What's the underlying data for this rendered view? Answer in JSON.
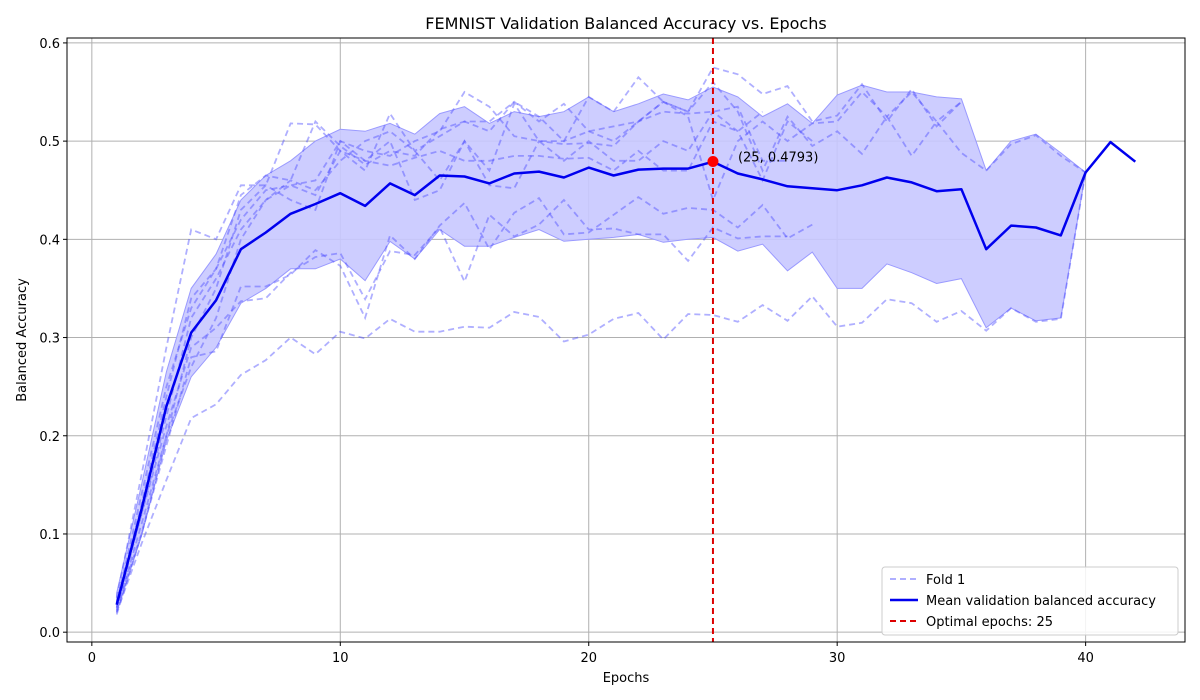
{
  "chart_data": {
    "type": "line",
    "title": "FEMNIST Validation Balanced Accuracy vs. Epochs",
    "xlabel": "Epochs",
    "ylabel": "Balanced Accuracy",
    "xlim": [
      -1,
      44
    ],
    "ylim": [
      -0.01,
      0.605
    ],
    "xticks": [
      0,
      10,
      20,
      30,
      40
    ],
    "yticks": [
      0.0,
      0.1,
      0.2,
      0.3,
      0.4,
      0.5,
      0.6
    ],
    "grid": true,
    "legend_position": "bottom-right",
    "colors": {
      "fold": "#4d4dff",
      "mean": "#0000ee",
      "band": "#c8c8ff",
      "optimal": "#dd0000"
    },
    "mean": {
      "name": "Mean validation balanced accuracy",
      "x": [
        1,
        2,
        3,
        4,
        5,
        6,
        7,
        8,
        9,
        10,
        11,
        12,
        13,
        14,
        15,
        16,
        17,
        18,
        19,
        20,
        21,
        22,
        23,
        24,
        25,
        26,
        27,
        28,
        29,
        30,
        31,
        32,
        33,
        34,
        35,
        36,
        37,
        38,
        39,
        40,
        41,
        42
      ],
      "values": [
        0.028,
        0.125,
        0.23,
        0.305,
        0.338,
        0.39,
        0.407,
        0.426,
        0.436,
        0.447,
        0.434,
        0.457,
        0.445,
        0.465,
        0.464,
        0.457,
        0.467,
        0.469,
        0.463,
        0.473,
        0.465,
        0.471,
        0.472,
        0.472,
        0.479,
        0.467,
        0.461,
        0.454,
        0.452,
        0.45,
        0.455,
        0.463,
        0.458,
        0.449,
        0.451,
        0.39,
        0.414,
        0.412,
        0.404,
        0.468,
        0.499,
        0.479
      ]
    },
    "band": {
      "x": [
        1,
        2,
        3,
        4,
        5,
        6,
        7,
        8,
        9,
        10,
        11,
        12,
        13,
        14,
        15,
        16,
        17,
        18,
        19,
        20,
        21,
        22,
        23,
        24,
        25,
        26,
        27,
        28,
        29,
        30,
        31,
        32,
        33,
        34,
        35,
        36,
        37,
        38,
        39,
        40
      ],
      "upper": [
        0.04,
        0.15,
        0.265,
        0.35,
        0.385,
        0.44,
        0.465,
        0.48,
        0.5,
        0.512,
        0.51,
        0.518,
        0.507,
        0.528,
        0.535,
        0.518,
        0.53,
        0.525,
        0.53,
        0.545,
        0.53,
        0.538,
        0.548,
        0.542,
        0.555,
        0.545,
        0.525,
        0.538,
        0.518,
        0.547,
        0.557,
        0.55,
        0.55,
        0.545,
        0.543,
        0.47,
        0.5,
        0.507,
        0.488,
        0.468
      ],
      "lower": [
        0.02,
        0.098,
        0.195,
        0.26,
        0.29,
        0.335,
        0.35,
        0.37,
        0.37,
        0.38,
        0.358,
        0.398,
        0.38,
        0.41,
        0.393,
        0.393,
        0.402,
        0.41,
        0.398,
        0.4,
        0.402,
        0.405,
        0.397,
        0.4,
        0.402,
        0.388,
        0.395,
        0.368,
        0.387,
        0.35,
        0.35,
        0.375,
        0.366,
        0.355,
        0.36,
        0.31,
        0.33,
        0.317,
        0.32,
        0.468
      ]
    },
    "folds": [
      {
        "name": "Fold 1",
        "x": [
          1,
          2,
          3,
          4,
          5,
          6,
          7,
          8,
          9,
          10,
          11,
          12,
          13,
          14,
          15,
          16,
          17,
          18,
          19,
          20,
          21,
          22,
          23,
          24,
          25,
          26,
          27,
          28,
          29,
          30,
          31,
          32,
          33,
          34,
          35,
          36,
          37,
          38,
          39,
          40
        ],
        "values": [
          0.02,
          0.09,
          0.155,
          0.218,
          0.232,
          0.262,
          0.277,
          0.3,
          0.283,
          0.306,
          0.299,
          0.319,
          0.306,
          0.306,
          0.311,
          0.31,
          0.326,
          0.321,
          0.296,
          0.303,
          0.319,
          0.325,
          0.298,
          0.324,
          0.323,
          0.316,
          0.333,
          0.317,
          0.342,
          0.311,
          0.315,
          0.339,
          0.335,
          0.316,
          0.327,
          0.307,
          0.33,
          0.316,
          0.319,
          0.468
        ]
      },
      {
        "x": [
          1,
          2,
          3,
          4,
          5,
          6,
          7,
          8,
          9,
          10,
          11,
          12,
          13,
          14,
          15,
          16,
          17,
          18,
          19,
          20,
          21,
          22,
          23,
          24,
          25,
          26,
          27,
          28,
          29
        ],
        "values": [
          0.025,
          0.1,
          0.19,
          0.28,
          0.286,
          0.352,
          0.352,
          0.364,
          0.389,
          0.373,
          0.32,
          0.404,
          0.38,
          0.414,
          0.437,
          0.39,
          0.427,
          0.442,
          0.405,
          0.407,
          0.425,
          0.443,
          0.426,
          0.432,
          0.43,
          0.412,
          0.435,
          0.401,
          0.415
        ]
      },
      {
        "x": [
          1,
          2,
          3,
          4,
          5,
          6,
          7,
          8,
          9,
          10,
          11,
          12,
          13,
          14,
          15,
          16,
          17,
          18,
          19,
          20,
          21,
          22,
          23,
          24,
          25,
          26,
          27,
          28
        ],
        "values": [
          0.03,
          0.12,
          0.21,
          0.29,
          0.31,
          0.337,
          0.34,
          0.366,
          0.382,
          0.386,
          0.339,
          0.388,
          0.384,
          0.412,
          0.357,
          0.425,
          0.403,
          0.415,
          0.44,
          0.41,
          0.411,
          0.405,
          0.405,
          0.378,
          0.412,
          0.401,
          0.403,
          0.403
        ]
      },
      {
        "x": [
          1,
          2,
          3,
          4,
          5,
          6,
          7,
          8,
          9,
          10,
          11,
          12,
          13,
          14,
          15,
          16,
          17,
          18,
          19,
          20,
          21,
          22,
          23,
          24,
          25,
          26,
          27,
          28,
          29,
          30,
          31,
          32,
          33,
          34,
          35
        ],
        "values": [
          0.03,
          0.14,
          0.25,
          0.33,
          0.37,
          0.42,
          0.45,
          0.455,
          0.46,
          0.5,
          0.49,
          0.485,
          0.5,
          0.51,
          0.55,
          0.535,
          0.505,
          0.5,
          0.5,
          0.51,
          0.515,
          0.52,
          0.54,
          0.53,
          0.575,
          0.568,
          0.548,
          0.556,
          0.52,
          0.526,
          0.558,
          0.52,
          0.553,
          0.515,
          0.54
        ]
      },
      {
        "x": [
          1,
          2,
          3,
          4,
          5,
          6,
          7,
          8,
          9,
          10,
          11,
          12,
          13,
          14,
          15,
          16,
          17,
          18,
          19,
          20,
          21,
          22,
          23,
          24,
          25,
          26,
          27,
          28,
          29,
          30,
          31,
          32,
          33,
          34,
          35,
          36,
          37,
          38,
          39,
          40
        ],
        "values": [
          0.035,
          0.16,
          0.29,
          0.41,
          0.4,
          0.455,
          0.455,
          0.518,
          0.517,
          0.49,
          0.47,
          0.528,
          0.49,
          0.505,
          0.52,
          0.51,
          0.54,
          0.525,
          0.5,
          0.545,
          0.53,
          0.565,
          0.54,
          0.53,
          0.56,
          0.53,
          0.47,
          0.525,
          0.495,
          0.51,
          0.487,
          0.525,
          0.485,
          0.52,
          0.488,
          0.47,
          0.497,
          0.506,
          0.485,
          0.468
        ]
      },
      {
        "x": [
          1,
          2,
          3,
          4,
          5,
          6,
          7,
          8,
          9,
          10,
          11,
          12,
          13,
          14,
          15,
          16,
          17,
          18,
          19,
          20,
          21,
          22,
          23,
          24,
          25,
          26,
          27,
          28,
          29,
          30,
          31,
          32,
          33,
          34,
          35
        ],
        "values": [
          0.028,
          0.13,
          0.24,
          0.34,
          0.37,
          0.445,
          0.465,
          0.46,
          0.52,
          0.495,
          0.476,
          0.49,
          0.485,
          0.512,
          0.52,
          0.52,
          0.54,
          0.52,
          0.538,
          0.51,
          0.5,
          0.52,
          0.54,
          0.525,
          0.44,
          0.5,
          0.52,
          0.5,
          0.518,
          0.52,
          0.55,
          0.525,
          0.55,
          0.52,
          0.54
        ]
      },
      {
        "x": [
          1,
          2,
          3,
          4,
          5,
          6,
          7,
          8,
          9,
          10,
          11,
          12,
          13,
          14,
          15,
          16,
          17,
          18,
          19,
          20,
          21,
          22,
          23,
          24,
          25,
          26,
          27
        ],
        "values": [
          0.025,
          0.12,
          0.22,
          0.32,
          0.36,
          0.41,
          0.44,
          0.455,
          0.445,
          0.49,
          0.48,
          0.475,
          0.483,
          0.49,
          0.48,
          0.48,
          0.485,
          0.485,
          0.482,
          0.483,
          0.47,
          0.49,
          0.47,
          0.47,
          0.52,
          0.51,
          0.53
        ]
      },
      {
        "x": [
          1,
          2,
          3,
          4,
          5,
          6,
          7,
          8,
          9,
          10,
          11,
          12,
          13,
          14,
          15,
          16,
          17,
          18,
          19,
          20,
          21,
          22,
          23,
          24,
          25,
          26,
          27,
          28
        ],
        "values": [
          0.022,
          0.11,
          0.2,
          0.3,
          0.35,
          0.43,
          0.455,
          0.44,
          0.43,
          0.5,
          0.48,
          0.5,
          0.44,
          0.45,
          0.5,
          0.455,
          0.452,
          0.5,
          0.497,
          0.498,
          0.495,
          0.52,
          0.53,
          0.528,
          0.53,
          0.535,
          0.48,
          0.48
        ]
      },
      {
        "x": [
          1,
          2,
          3,
          4,
          5,
          6,
          7,
          8,
          9,
          10,
          11,
          12,
          13,
          14,
          15,
          16,
          17,
          18,
          19,
          20,
          21,
          22,
          23,
          24,
          25,
          26,
          27,
          28,
          29
        ],
        "values": [
          0.018,
          0.1,
          0.2,
          0.27,
          0.32,
          0.4,
          0.44,
          0.46,
          0.45,
          0.48,
          0.5,
          0.51,
          0.49,
          0.46,
          0.5,
          0.47,
          0.538,
          0.5,
          0.48,
          0.5,
          0.48,
          0.48,
          0.5,
          0.49,
          0.53,
          0.51,
          0.46,
          0.52,
          0.5
        ]
      }
    ],
    "optimal": {
      "name": "Optimal epochs: 25",
      "x": 25,
      "y": 0.4793,
      "annotation": "(25, 0.4793)"
    }
  }
}
